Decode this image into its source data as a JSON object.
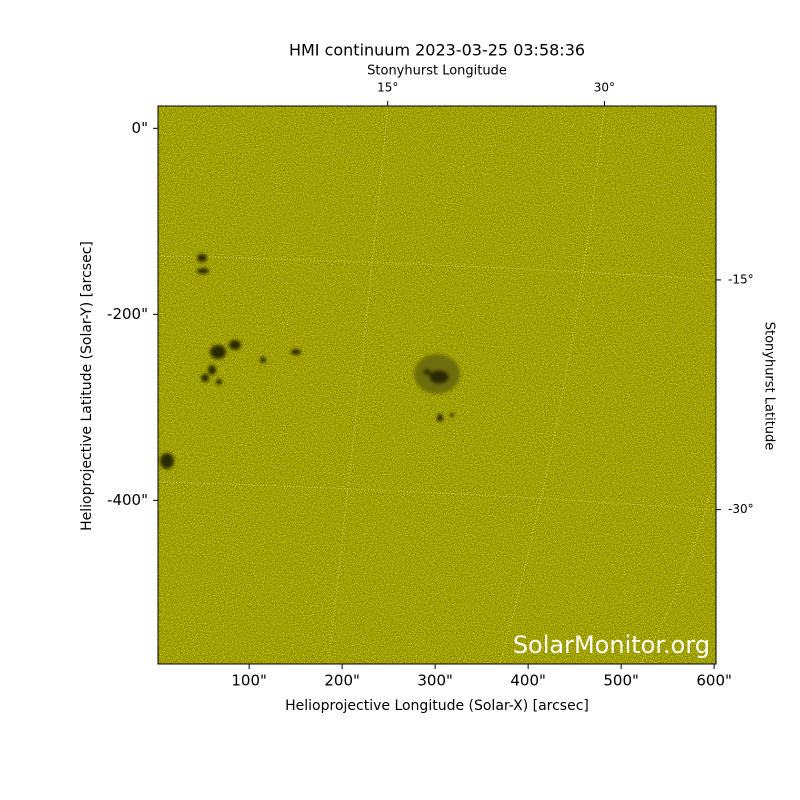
{
  "chart_data": {
    "type": "image",
    "title": "HMI continuum 2023-03-25 03:58:36",
    "xlabel": "Helioprojective Longitude (Solar-X) [arcsec]",
    "ylabel": "Helioprojective Latitude (Solar-Y) [arcsec]",
    "top_label": "Stonyhurst Longitude",
    "right_label": "Stonyhurst Latitude",
    "watermark": "SolarMonitor.org",
    "color": "#c9c900",
    "xlim": [
      2,
      602
    ],
    "ylim": [
      -576,
      24
    ],
    "xticks": [
      {
        "value": 100,
        "label": "100\""
      },
      {
        "value": 200,
        "label": "200\""
      },
      {
        "value": 300,
        "label": "300\""
      },
      {
        "value": 400,
        "label": "400\""
      },
      {
        "value": 500,
        "label": "500\""
      },
      {
        "value": 600,
        "label": "600\""
      }
    ],
    "yticks": [
      {
        "value": 0,
        "label": "0\""
      },
      {
        "value": -200,
        "label": "-200\""
      },
      {
        "value": -400,
        "label": "-400\""
      }
    ],
    "top_ticks": [
      {
        "value": 15,
        "label": "15°",
        "x": 249
      },
      {
        "value": 30,
        "label": "30°",
        "x": 482
      }
    ],
    "right_ticks": [
      {
        "value": -15,
        "label": "-15°",
        "y": -163
      },
      {
        "value": -30,
        "label": "-30°",
        "y": -410
      }
    ]
  }
}
